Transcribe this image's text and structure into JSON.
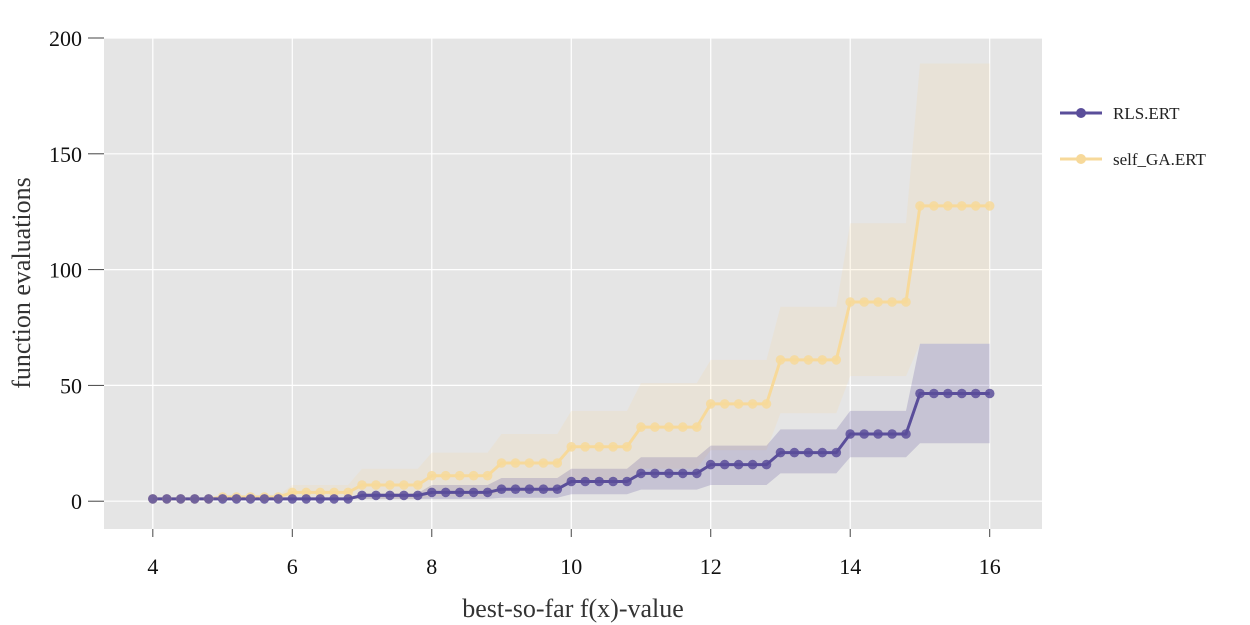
{
  "chart_data": {
    "type": "line",
    "xlabel": "best-so-far f(x)-value",
    "ylabel": "function evaluations",
    "xlim": [
      3.3,
      16.75
    ],
    "ylim": [
      -12,
      200
    ],
    "xticks": [
      4,
      6,
      8,
      10,
      12,
      14,
      16
    ],
    "yticks": [
      0,
      50,
      100,
      150,
      200
    ],
    "grid": true,
    "legend_position": "right",
    "series": [
      {
        "name": "RLS.ERT",
        "color": "#5a4e9a",
        "steps": [
          {
            "x0": 4.0,
            "x1": 6.8,
            "y": 1.0,
            "lo": 1.0,
            "hi": 1.2
          },
          {
            "x0": 7.0,
            "x1": 7.8,
            "y": 2.5,
            "lo": 1.0,
            "hi": 3.5
          },
          {
            "x0": 8.0,
            "x1": 8.8,
            "y": 3.8,
            "lo": 1.0,
            "hi": 7.0
          },
          {
            "x0": 9.0,
            "x1": 9.8,
            "y": 5.2,
            "lo": 1.5,
            "hi": 10.0
          },
          {
            "x0": 10.0,
            "x1": 10.8,
            "y": 8.5,
            "lo": 3.0,
            "hi": 14.0
          },
          {
            "x0": 11.0,
            "x1": 11.8,
            "y": 12.0,
            "lo": 5.0,
            "hi": 19.0
          },
          {
            "x0": 12.0,
            "x1": 12.8,
            "y": 15.8,
            "lo": 7.0,
            "hi": 24.0
          },
          {
            "x0": 13.0,
            "x1": 13.8,
            "y": 21.0,
            "lo": 12.0,
            "hi": 31.0
          },
          {
            "x0": 14.0,
            "x1": 14.8,
            "y": 29.0,
            "lo": 19.0,
            "hi": 39.0
          },
          {
            "x0": 15.0,
            "x1": 16.0,
            "y": 46.5,
            "lo": 25.0,
            "hi": 68.0
          }
        ]
      },
      {
        "name": "self_GA.ERT",
        "color": "#f7d99a",
        "steps": [
          {
            "x0": 4.0,
            "x1": 4.8,
            "y": 1.0,
            "lo": 1.0,
            "hi": 1.0
          },
          {
            "x0": 5.0,
            "x1": 5.8,
            "y": 1.8,
            "lo": 1.0,
            "hi": 2.5
          },
          {
            "x0": 6.0,
            "x1": 6.8,
            "y": 3.8,
            "lo": 1.0,
            "hi": 7.0
          },
          {
            "x0": 7.0,
            "x1": 7.8,
            "y": 7.0,
            "lo": 1.0,
            "hi": 14.0
          },
          {
            "x0": 8.0,
            "x1": 8.8,
            "y": 11.0,
            "lo": 2.0,
            "hi": 21.0
          },
          {
            "x0": 9.0,
            "x1": 9.8,
            "y": 16.5,
            "lo": 4.0,
            "hi": 29.0
          },
          {
            "x0": 10.0,
            "x1": 10.8,
            "y": 23.5,
            "lo": 8.0,
            "hi": 39.0
          },
          {
            "x0": 11.0,
            "x1": 11.8,
            "y": 32.0,
            "lo": 14.0,
            "hi": 51.0
          },
          {
            "x0": 12.0,
            "x1": 12.8,
            "y": 42.0,
            "lo": 22.0,
            "hi": 61.0
          },
          {
            "x0": 13.0,
            "x1": 13.8,
            "y": 61.0,
            "lo": 38.0,
            "hi": 84.0
          },
          {
            "x0": 14.0,
            "x1": 14.8,
            "y": 86.0,
            "lo": 54.0,
            "hi": 120.0
          },
          {
            "x0": 15.0,
            "x1": 16.0,
            "y": 127.5,
            "lo": 68.0,
            "hi": 189.0
          }
        ]
      }
    ]
  }
}
